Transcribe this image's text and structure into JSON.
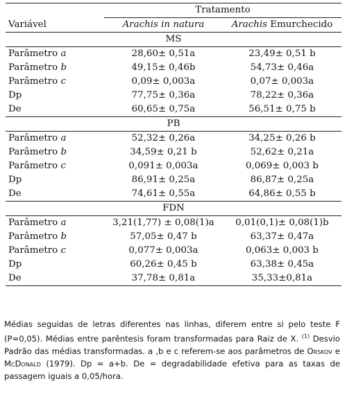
{
  "header": {
    "variable_label": "Variável",
    "treatment_label": "Tratamento",
    "col1_label": "Arachis in natura",
    "col2_label_italic": "Arachis",
    "col2_label_rest": " Emurchecido"
  },
  "sections": [
    {
      "title": "MS",
      "rows": [
        {
          "name": "Parâmetro ",
          "letter": "a",
          "v1": "28,60± 0,51a",
          "v2": "23,49± 0,51 b"
        },
        {
          "name": "Parâmetro ",
          "letter": "b",
          "v1": "49,15± 0,46b",
          "v2": "54,73± 0,46a"
        },
        {
          "name": "Parâmetro ",
          "letter": "c",
          "v1": "0,09± 0,003a",
          "v2": "0,07± 0,003a"
        },
        {
          "name": "Dp",
          "letter": "",
          "v1": "77,75± 0,36a",
          "v2": "78,22± 0,36a"
        },
        {
          "name": "De",
          "letter": "",
          "v1": "60,65± 0,75a",
          "v2": "56,51± 0,75 b"
        }
      ]
    },
    {
      "title": "PB",
      "rows": [
        {
          "name": "Parâmetro ",
          "letter": "a",
          "v1": "52,32± 0,26a",
          "v2": "34,25± 0,26 b"
        },
        {
          "name": "Parâmetro ",
          "letter": "b",
          "v1": "34,59± 0,21 b",
          "v2": "52,62± 0,21a"
        },
        {
          "name": "Parâmetro ",
          "letter": "c",
          "v1": "0,091± 0,003a",
          "v2": "0,069± 0,003 b"
        },
        {
          "name": "Dp",
          "letter": "",
          "v1": "86,91± 0,25a",
          "v2": "86,87± 0,25a"
        },
        {
          "name": "De",
          "letter": "",
          "v1": "74,61± 0,55a",
          "v2": "64,86± 0,55 b"
        }
      ]
    },
    {
      "title": "FDN",
      "rows": [
        {
          "name": "Parâmetro ",
          "letter": "a",
          "v1": "3,21(1,77) ± 0,08(1)a",
          "v2": "0,01(0,1)± 0,08(1)b"
        },
        {
          "name": "Parâmetro ",
          "letter": "b",
          "v1": "57,05± 0,47 b",
          "v2": "63,37± 0,47a"
        },
        {
          "name": "Parâmetro ",
          "letter": "c",
          "v1": "0,077± 0,003a",
          "v2": "0,063± 0,003 b"
        },
        {
          "name": "Dp",
          "letter": "",
          "v1": "60,26± 0,45 b",
          "v2": "63,38± 0,45a"
        },
        {
          "name": "De",
          "letter": "",
          "v1": "37,78± 0,81a",
          "v2": "35,33±0,81a"
        }
      ]
    }
  ],
  "footnote": {
    "part1": "Médias seguidas de letras diferentes nas linhas, diferem entre si pelo teste F (P=0,05). Médias entre parêntesis foram transformadas para Raiz de X. ",
    "sup": "(1)",
    "part2": " Desvio Padrão das médias transformadas. a ,b e c referem-se aos parâmetros de ",
    "author1": "Orskov",
    "and": " e ",
    "author2": "McDonald",
    "part3": " (1979). Dp = a+b. De = degradabilidade efetiva para as taxas de passagem iguais a 0,05/hora."
  }
}
